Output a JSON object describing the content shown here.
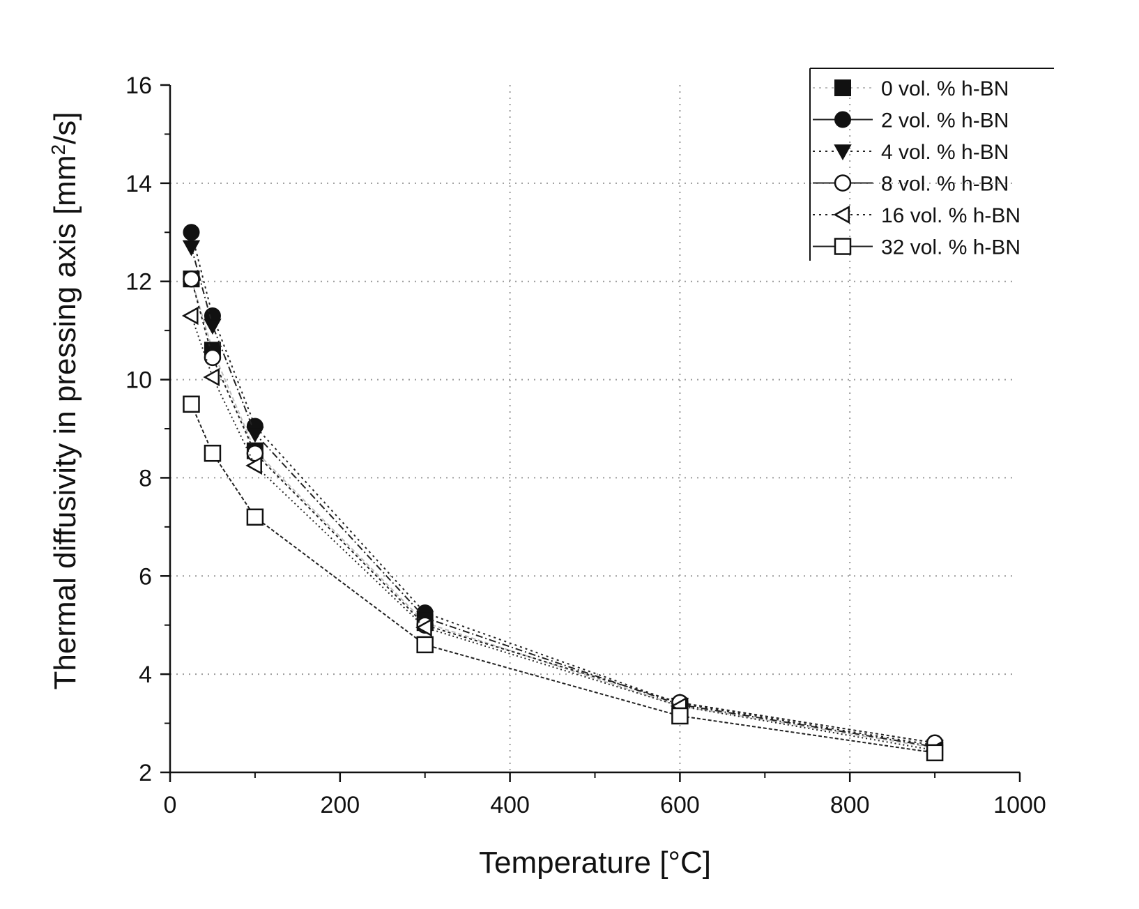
{
  "chart_data": {
    "type": "line",
    "title": "",
    "xlabel": "Temperature [°C]",
    "ylabel_parts": [
      "Thermal diffusivity in pressing axis [mm",
      "2",
      "/s]"
    ],
    "xlim": [
      0,
      1000
    ],
    "ylim": [
      2,
      16
    ],
    "x_ticks": [
      0,
      200,
      400,
      600,
      800,
      1000
    ],
    "x_tick_labels": [
      "0",
      "200",
      "400",
      "600",
      "800",
      "1000"
    ],
    "y_ticks": [
      2,
      4,
      6,
      8,
      10,
      12,
      14,
      16
    ],
    "y_tick_labels": [
      "2",
      "4",
      "6",
      "8",
      "10",
      "12",
      "14",
      "16"
    ],
    "grid": true,
    "legend_position": "top-right",
    "x": [
      25,
      50,
      100,
      300,
      600,
      900
    ],
    "series": [
      {
        "name": "0 vol. % h-BN",
        "marker": "square-filled",
        "line_color": "#bdbdbd",
        "values": [
          12.05,
          10.6,
          8.55,
          5.05,
          3.35,
          2.5
        ]
      },
      {
        "name": "2 vol. % h-BN",
        "marker": "circle-filled",
        "line_color": "#222222",
        "values": [
          13.0,
          11.3,
          9.05,
          5.25,
          3.4,
          2.55
        ]
      },
      {
        "name": "4 vol. % h-BN",
        "marker": "triangle-down",
        "line_color": "#222222",
        "values": [
          12.7,
          11.1,
          8.9,
          5.15,
          3.38,
          2.52
        ]
      },
      {
        "name": "8 vol. % h-BN",
        "marker": "circle-open",
        "line_color": "#222222",
        "values": [
          12.05,
          10.45,
          8.5,
          5.0,
          3.42,
          2.6
        ]
      },
      {
        "name": "16 vol. % h-BN",
        "marker": "triangle-left-open",
        "line_color": "#222222",
        "values": [
          11.3,
          10.05,
          8.25,
          4.95,
          3.35,
          2.45
        ]
      },
      {
        "name": "32 vol. % h-BN",
        "marker": "square-open",
        "line_color": "#222222",
        "values": [
          9.5,
          8.5,
          7.2,
          4.6,
          3.15,
          2.4
        ]
      }
    ]
  }
}
